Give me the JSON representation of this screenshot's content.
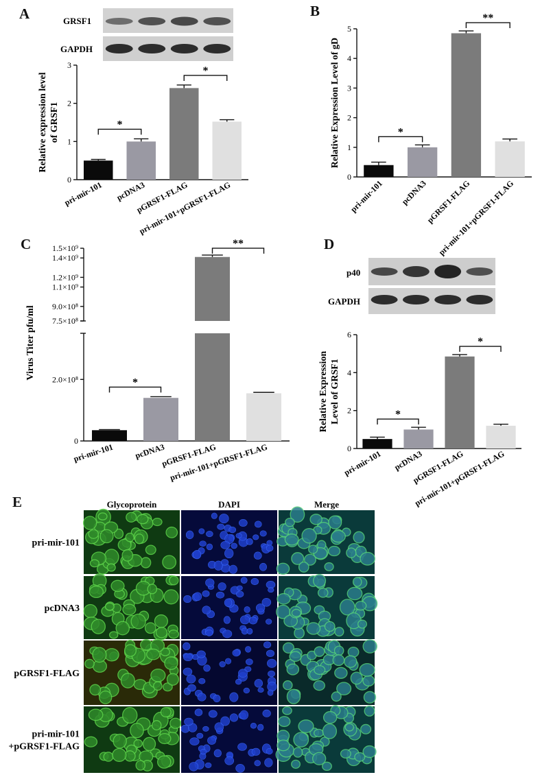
{
  "panels": {
    "A": {
      "letter": "A",
      "blot_labels": [
        "GRSF1",
        "GAPDH"
      ],
      "chart_data": {
        "type": "bar",
        "categories": [
          "pri-mir-101",
          "pcDNA3",
          "pGRSF1-FLAG",
          "pri-mir-101+pGRSF1-FLAG"
        ],
        "values": [
          0.5,
          1.0,
          2.4,
          1.52
        ],
        "errors": [
          0.03,
          0.07,
          0.08,
          0.05
        ],
        "colors": [
          "#0a0a0a",
          "#9a99a3",
          "#7b7b7b",
          "#e0e0e0"
        ],
        "ylabel_lines": [
          "Relative expression level",
          "of GRSF1"
        ],
        "ylim": [
          0,
          3
        ],
        "yticks": [
          "0",
          "1",
          "2",
          "3"
        ],
        "significance": [
          {
            "from": 0,
            "to": 1,
            "label": "*"
          },
          {
            "from": 2,
            "to": 3,
            "label": "*"
          }
        ]
      }
    },
    "B": {
      "letter": "B",
      "chart_data": {
        "type": "bar",
        "categories": [
          "pri-mir-101",
          "pcDNA3",
          "pGRSF1-FLAG",
          "pri-mir-101+pGRSF1-FLAG"
        ],
        "values": [
          0.4,
          1.0,
          4.85,
          1.2
        ],
        "errors": [
          0.1,
          0.08,
          0.08,
          0.08
        ],
        "colors": [
          "#0a0a0a",
          "#9a99a3",
          "#7b7b7b",
          "#e0e0e0"
        ],
        "ylabel_lines": [
          "Relative  Expression Level of gD"
        ],
        "ylim": [
          0,
          5
        ],
        "yticks": [
          "0",
          "1",
          "2",
          "3",
          "4",
          "5"
        ],
        "significance": [
          {
            "from": 0,
            "to": 1,
            "label": "*"
          },
          {
            "from": 2,
            "to": 3,
            "label": "**"
          }
        ]
      }
    },
    "C": {
      "letter": "C",
      "chart_data": {
        "type": "bar",
        "categories": [
          "pri-mir-101",
          "pcDNA3",
          "pGRSF1-FLAG",
          "pri-mir-101+pGRSF1-FLAG"
        ],
        "values": [
          35000000,
          140000000,
          1410000000,
          155000000
        ],
        "errors": [
          2000000,
          4000000,
          20000000,
          3000000
        ],
        "colors": [
          "#0a0a0a",
          "#9a99a3",
          "#7b7b7b",
          "#e0e0e0"
        ],
        "ylabel_lines": [
          "Virus Titer pfu/ml"
        ],
        "lower_segment": {
          "ylim": [
            0,
            350000000
          ],
          "ticks": [
            {
              "v": 0,
              "label": "0"
            },
            {
              "v": 200000000,
              "label": "2.0×10⁸"
            }
          ]
        },
        "upper_segment": {
          "ylim": [
            750000000,
            1500000000
          ],
          "ticks": [
            {
              "v": 750000000,
              "label": "7.5×10⁸"
            },
            {
              "v": 900000000,
              "label": "9.0×10⁸"
            },
            {
              "v": 1100000000,
              "label": "1.1×10⁹"
            },
            {
              "v": 1200000000,
              "label": "1.2×10⁹"
            },
            {
              "v": 1400000000,
              "label": "1.4×10⁹"
            },
            {
              "v": 1500000000,
              "label": "1.5×10⁹"
            }
          ]
        },
        "significance": [
          {
            "from": 0,
            "to": 1,
            "label": "*"
          },
          {
            "from": 2,
            "to": 3,
            "label": "**"
          }
        ]
      }
    },
    "D": {
      "letter": "D",
      "blot_labels": [
        "p40",
        "GAPDH"
      ],
      "chart_data": {
        "type": "bar",
        "categories": [
          "pri-mir-101",
          "pcDNA3",
          "pGRSF1-FLAG",
          "pri-mir-101+pGRSF1-FLAG"
        ],
        "values": [
          0.5,
          1.0,
          4.85,
          1.2
        ],
        "errors": [
          0.1,
          0.12,
          0.1,
          0.08
        ],
        "colors": [
          "#0a0a0a",
          "#9a99a3",
          "#7b7b7b",
          "#e0e0e0"
        ],
        "ylabel_lines": [
          "Relative  Expression",
          "Level of GRSF1"
        ],
        "ylim": [
          0,
          6
        ],
        "yticks": [
          "0",
          "2",
          "4",
          "6"
        ],
        "significance": [
          {
            "from": 0,
            "to": 1,
            "label": "*"
          },
          {
            "from": 2,
            "to": 3,
            "label": "*"
          }
        ]
      }
    },
    "E": {
      "letter": "E",
      "columns": [
        "Glycoprotein",
        "DAPI",
        "Merge"
      ],
      "rows": [
        {
          "lines": [
            "pri-mir-101"
          ]
        },
        {
          "lines": [
            "pcDNA3"
          ]
        },
        {
          "lines": [
            "pGRSF1-FLAG"
          ]
        },
        {
          "lines": [
            "pri-mir-101",
            "+pGRSF1-FLAG"
          ]
        }
      ]
    }
  }
}
